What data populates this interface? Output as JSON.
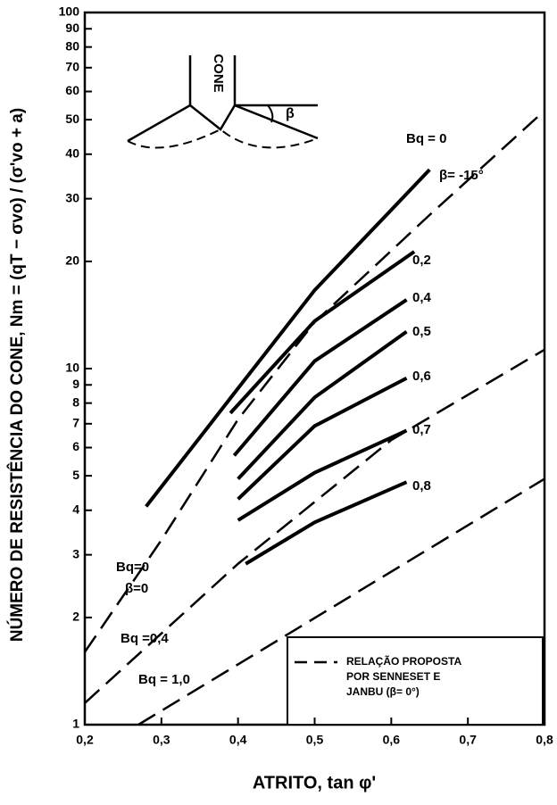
{
  "chart_data": {
    "type": "line",
    "ylabel": "NÚMERO DE RESISTÊNCIA DO CONE, Nm = (qT − σvo) / (σ'vo + a)",
    "xlabel": "ATRITO, tan φ'",
    "log_y": true,
    "xlim": [
      0.2,
      0.8
    ],
    "ylim": [
      1,
      100
    ],
    "xticks": [
      {
        "value": 0.2,
        "label": "0,2"
      },
      {
        "value": 0.3,
        "label": "0,3"
      },
      {
        "value": 0.4,
        "label": "0,4"
      },
      {
        "value": 0.5,
        "label": "0,5"
      },
      {
        "value": 0.6,
        "label": "0,6"
      },
      {
        "value": 0.7,
        "label": "0,7"
      },
      {
        "value": 0.8,
        "label": "0,8"
      }
    ],
    "yticks": [
      1,
      2,
      3,
      4,
      5,
      6,
      7,
      8,
      9,
      10,
      20,
      30,
      40,
      50,
      60,
      70,
      80,
      90,
      100
    ],
    "series": [
      {
        "name": "Bq = 0",
        "style": "solid",
        "color": "#000000",
        "x": [
          0.28,
          0.35,
          0.4,
          0.5,
          0.6,
          0.65
        ],
        "values": [
          4.1,
          6.4,
          8.8,
          16.6,
          27.9,
          36.2
        ]
      },
      {
        "name": "0,2",
        "style": "solid",
        "color": "#000000",
        "x": [
          0.39,
          0.5,
          0.63
        ],
        "values": [
          7.5,
          13.6,
          21.3
        ]
      },
      {
        "name": "0,4",
        "style": "solid",
        "color": "#000000",
        "x": [
          0.395,
          0.5,
          0.62
        ],
        "values": [
          5.7,
          10.5,
          15.6
        ]
      },
      {
        "name": "0,5",
        "style": "solid",
        "color": "#000000",
        "x": [
          0.4,
          0.5,
          0.62
        ],
        "values": [
          4.9,
          8.3,
          12.7
        ]
      },
      {
        "name": "0,6",
        "style": "solid",
        "color": "#000000",
        "x": [
          0.4,
          0.5,
          0.62
        ],
        "values": [
          4.3,
          6.9,
          9.4
        ]
      },
      {
        "name": "0,7",
        "style": "solid",
        "color": "#000000",
        "x": [
          0.4,
          0.5,
          0.62
        ],
        "values": [
          3.75,
          5.1,
          6.7
        ]
      },
      {
        "name": "0,8",
        "style": "solid",
        "color": "#000000",
        "x": [
          0.41,
          0.5,
          0.62
        ],
        "values": [
          2.83,
          3.7,
          4.8
        ]
      },
      {
        "name": "Bq=0",
        "style": "dashed",
        "color": "#000000",
        "x": [
          0.2,
          0.3,
          0.4,
          0.5,
          0.65,
          0.8
        ],
        "values": [
          1.6,
          3.3,
          7.2,
          13.5,
          27,
          53
        ]
      },
      {
        "name": "Bq =0,4",
        "style": "dashed",
        "color": "#000000",
        "x": [
          0.2,
          0.4,
          0.6,
          0.8
        ],
        "values": [
          1.15,
          2.83,
          6.3,
          11.3
        ]
      },
      {
        "name": "Bq = 1,0",
        "style": "dashed",
        "color": "#000000",
        "x": [
          0.27,
          0.8
        ],
        "values": [
          1,
          4.9
        ]
      }
    ],
    "annotations": [
      "β= -15°",
      "β=0"
    ],
    "legend": [
      "RELAÇÃO PROPOSTA",
      "POR SENNESET E",
      "JANBU (β= 0°)"
    ],
    "diagram_labels": [
      "CONE",
      "β"
    ]
  }
}
